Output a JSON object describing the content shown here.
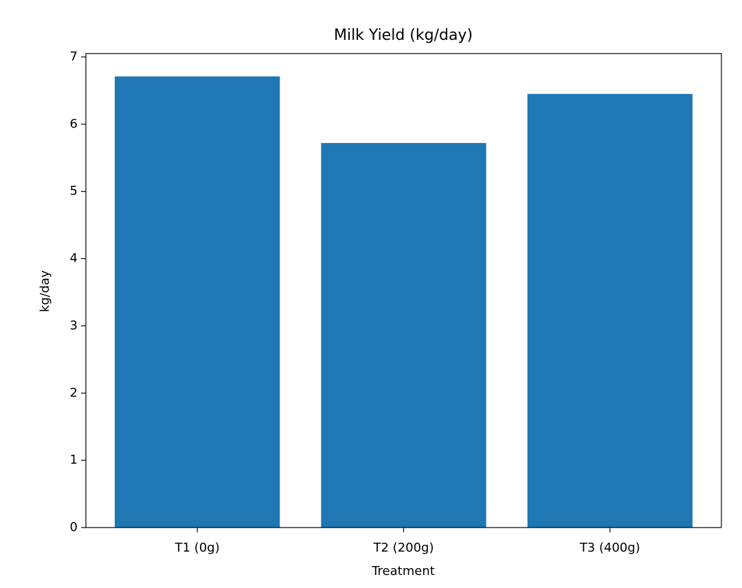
{
  "chart_data": {
    "type": "bar",
    "title": "Milk Yield (kg/day)",
    "x_label": "Treatment",
    "y_label": "kg/day",
    "categories": [
      "T1 (0g)",
      "T2 (200g)",
      "T3 (400g)"
    ],
    "values": [
      6.71,
      5.72,
      6.45
    ],
    "color": "#1f77b4",
    "ylim": [
      0,
      7.05
    ],
    "yticks": [
      0,
      1,
      2,
      3,
      4,
      5,
      6,
      7
    ],
    "grid": false
  }
}
